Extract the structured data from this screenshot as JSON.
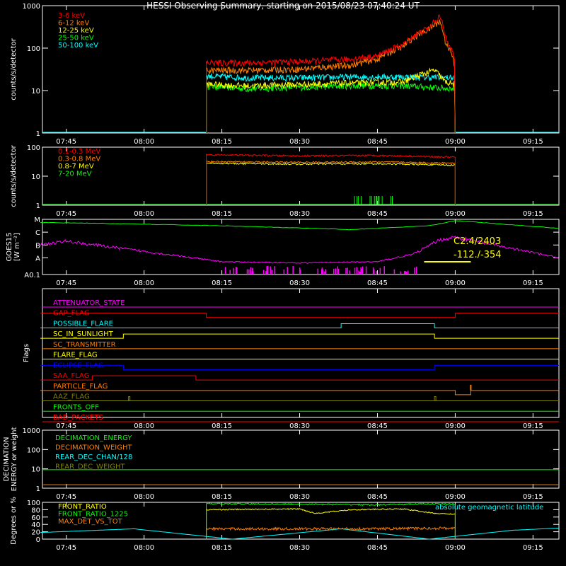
{
  "title": "HESSI Observing Summary, starting on 2015/08/23 07:40:24 UT",
  "time_ticks": [
    "07:45",
    "08:00",
    "08:15",
    "08:30",
    "08:45",
    "09:00",
    "09:15"
  ],
  "chart_data": [
    {
      "type": "line",
      "ylabel": "counts/s/detector",
      "yscale": "log",
      "ylim": [
        1,
        1000
      ],
      "ytick_labels": [
        "1",
        "10",
        "100",
        "1000"
      ],
      "data_interval": [
        "08:12",
        "09:00"
      ],
      "series": [
        {
          "name": "3-6 keV",
          "color": "#ff0000",
          "x": [
            "08:12",
            "08:20",
            "08:30",
            "08:40",
            "08:45",
            "08:50",
            "08:55",
            "08:57",
            "08:58",
            "09:00"
          ],
          "y": [
            45,
            45,
            48,
            55,
            65,
            120,
            300,
            560,
            200,
            38
          ]
        },
        {
          "name": "6-12 keV",
          "color": "#ff7f00",
          "x": [
            "08:12",
            "08:20",
            "08:30",
            "08:40",
            "08:45",
            "08:50",
            "08:55",
            "08:57",
            "08:58",
            "09:00"
          ],
          "y": [
            30,
            30,
            32,
            40,
            55,
            110,
            280,
            430,
            150,
            28
          ]
        },
        {
          "name": "12-25 keV",
          "color": "#ffff00",
          "x": [
            "08:12",
            "08:20",
            "08:30",
            "08:40",
            "08:50",
            "08:56",
            "08:58",
            "09:00"
          ],
          "y": [
            14,
            13,
            14,
            15,
            16,
            30,
            16,
            14
          ]
        },
        {
          "name": "25-50 keV",
          "color": "#00ff00",
          "x": [
            "08:12",
            "08:20",
            "08:30",
            "08:40",
            "08:50",
            "09:00"
          ],
          "y": [
            13,
            11,
            12,
            13,
            13,
            11
          ]
        },
        {
          "name": "50-100 keV",
          "color": "#00ffff",
          "x": [
            "08:12",
            "08:20",
            "08:30",
            "08:40",
            "08:50",
            "09:00"
          ],
          "y": [
            22,
            20,
            20,
            21,
            21,
            20
          ]
        }
      ]
    },
    {
      "type": "line",
      "ylabel": "counts/s/detector",
      "yscale": "log",
      "ylim": [
        1,
        100
      ],
      "ytick_labels": [
        "1",
        "10",
        "100"
      ],
      "data_interval": [
        "08:12",
        "09:00"
      ],
      "series": [
        {
          "name": "0.1-0.3 MeV",
          "color": "#ff0000",
          "x": [
            "08:12",
            "08:30",
            "08:45",
            "09:00"
          ],
          "y": [
            55,
            50,
            52,
            45
          ]
        },
        {
          "name": "0.3-0.8 MeV",
          "color": "#ff7f00",
          "x": [
            "08:12",
            "08:30",
            "08:45",
            "09:00"
          ],
          "y": [
            32,
            30,
            31,
            28
          ]
        },
        {
          "name": "0.8-7 MeV",
          "color": "#ffff00",
          "x": [
            "08:12",
            "08:30",
            "08:45",
            "09:00"
          ],
          "y": [
            28,
            26,
            27,
            24
          ]
        },
        {
          "name": "7-20 MeV",
          "color": "#00ff00",
          "x": [
            "07:40",
            "09:20"
          ],
          "y": [
            1,
            1
          ]
        }
      ]
    },
    {
      "type": "line",
      "ylabel": "GOES15",
      "ylabel_unit": "[W m⁻²]",
      "ytick_labels": [
        "A0.1",
        "A",
        "B",
        "C",
        "M"
      ],
      "ylim_class": [
        -0.3,
        4
      ],
      "series": [
        {
          "color": "#00ff00",
          "x": [
            "07:40",
            "07:50",
            "08:15",
            "08:40",
            "08:55",
            "09:00",
            "09:10",
            "09:20"
          ],
          "y": [
            3.75,
            3.7,
            3.5,
            3.2,
            3.5,
            3.9,
            3.6,
            3.3
          ]
        },
        {
          "color": "#ff00ff",
          "x": [
            "07:40",
            "07:45",
            "08:00",
            "08:15",
            "08:30",
            "08:45",
            "08:52",
            "08:57",
            "09:00",
            "09:10",
            "09:20"
          ],
          "y": [
            2.0,
            2.3,
            1.5,
            0.7,
            0.6,
            0.7,
            1.3,
            2.4,
            2.6,
            1.8,
            1.0
          ]
        }
      ],
      "annotations": [
        "C2.4/2403",
        "-112./-354"
      ]
    },
    {
      "type": "line",
      "ylabel": "Flags",
      "series": [
        {
          "name": "ATTENUATOR_STATE",
          "color": "#ff00ff"
        },
        {
          "name": "GAP_FLAG",
          "color": "#ff0000"
        },
        {
          "name": "POSSIBLE_FLARE",
          "color": "#00ffff"
        },
        {
          "name": "SC_IN_SUNLIGHT",
          "color": "#ffff00"
        },
        {
          "name": "SC_TRANSMITTER",
          "color": "#ff7f00"
        },
        {
          "name": "FLARE_FLAG",
          "color": "#ffff00"
        },
        {
          "name": "ECLIPSE_FLAG",
          "color": "#0000ff"
        },
        {
          "name": "SAA_FLAG",
          "color": "#ff0000"
        },
        {
          "name": "PARTICLE_FLAG",
          "color": "#ff7f00"
        },
        {
          "name": "AAZ_FLAG",
          "color": "#808000"
        },
        {
          "name": "FRONTS_OFF",
          "color": "#00ff00"
        },
        {
          "name": "BAD_PACKETS",
          "color": "#ff0000"
        }
      ]
    },
    {
      "type": "line",
      "ylabel": "DECIMATION",
      "ylabel2": "ENERGY or weight",
      "yscale": "log",
      "ylim": [
        1,
        1000
      ],
      "ytick_labels": [
        "1",
        "10",
        "100",
        "1000"
      ],
      "series": [
        {
          "name": "DECIMATION_ENERGY",
          "color": "#00ff00",
          "x": [
            "07:40",
            "09:20"
          ],
          "y": [
            9,
            9
          ]
        },
        {
          "name": "DECIMATION_WEIGHT",
          "color": "#ff7f00",
          "x": [
            "07:40",
            "09:20"
          ],
          "y": [
            1.5,
            1.5
          ]
        },
        {
          "name": "REAR_DEC_CHAN/128",
          "color": "#00ffff",
          "x": [],
          "y": []
        },
        {
          "name": "REAR_DEC_WEIGHT",
          "color": "#808000",
          "x": [],
          "y": []
        }
      ]
    },
    {
      "type": "line",
      "ylabel": "Degrees or %",
      "ylim": [
        0,
        100
      ],
      "ytick_labels": [
        "0",
        "20",
        "40",
        "60",
        "80",
        "100"
      ],
      "series": [
        {
          "name": "FRONT_RATIO",
          "color": "#ffff00",
          "x": [
            "08:12",
            "08:30",
            "08:33",
            "08:40",
            "08:50",
            "08:56",
            "09:00"
          ],
          "y": [
            80,
            82,
            70,
            80,
            82,
            70,
            68
          ]
        },
        {
          "name": "FRONT_RATIO_1225",
          "color": "#00ff00",
          "x": [
            "08:12",
            "08:30",
            "08:45",
            "08:55",
            "09:00"
          ],
          "y": [
            96,
            95,
            93,
            96,
            95
          ]
        },
        {
          "name": "MAX_DET_VS_TOT",
          "color": "#ff7f00",
          "x": [
            "08:12",
            "08:30",
            "08:45",
            "09:00"
          ],
          "y": [
            28,
            28,
            28,
            30
          ]
        },
        {
          "name": "absolute geomagnetic latitude",
          "color": "#00ffff",
          "x": [
            "07:40",
            "07:58",
            "08:17",
            "08:38",
            "08:55",
            "09:11",
            "09:20"
          ],
          "y": [
            18,
            28,
            0,
            28,
            0,
            24,
            30
          ]
        }
      ]
    }
  ]
}
